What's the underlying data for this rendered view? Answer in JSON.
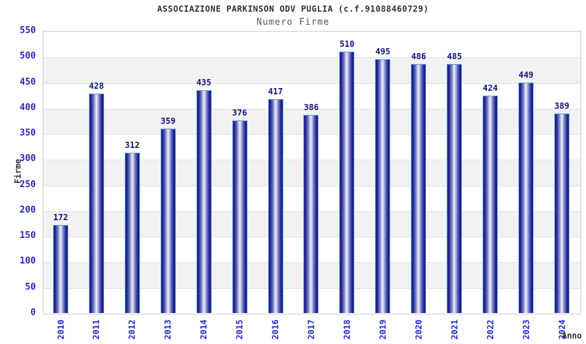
{
  "chart_data": {
    "type": "bar",
    "title": "ASSOCIAZIONE PARKINSON ODV PUGLIA (c.f.91088460729)",
    "subtitle": "Numero Firme",
    "xlabel": "Anno",
    "ylabel": "Firme",
    "categories": [
      "2010",
      "2011",
      "2012",
      "2013",
      "2014",
      "2015",
      "2016",
      "2017",
      "2018",
      "2019",
      "2020",
      "2021",
      "2022",
      "2023",
      "2024"
    ],
    "values": [
      172,
      428,
      312,
      359,
      435,
      376,
      417,
      386,
      510,
      495,
      486,
      485,
      424,
      449,
      389
    ],
    "ylim": [
      0,
      550
    ],
    "ytick_step": 50,
    "yticks": [
      0,
      50,
      100,
      150,
      200,
      250,
      300,
      350,
      400,
      450,
      500,
      550
    ],
    "legend": "none",
    "grid": "alternating-horizontal-bands",
    "colors": {
      "bar_edge": "#191986",
      "bar_mid": "#6a71bb",
      "bar_highlight": "#eef1fb",
      "bar_border": "#58a0e0",
      "axis_tick_label": "#2626cc",
      "value_label": "#15157c",
      "band_alt": "#f2f2f2",
      "gridline": "#e2e2e2",
      "frame": "#cccccc",
      "title": "#333333",
      "subtitle": "#555555"
    }
  }
}
